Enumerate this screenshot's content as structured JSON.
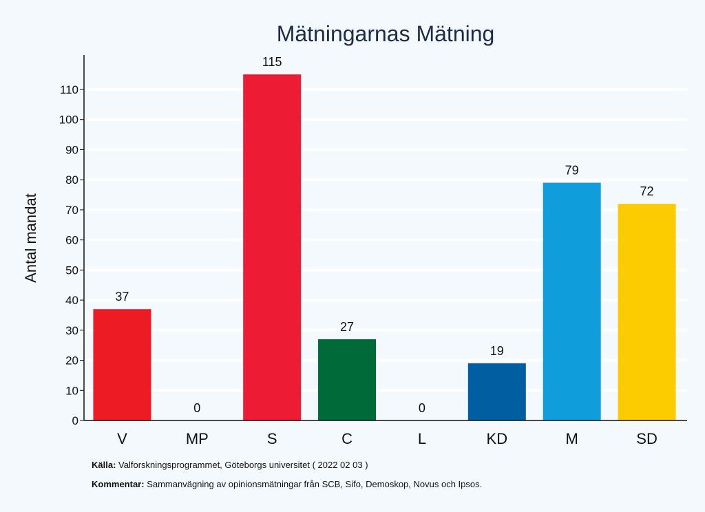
{
  "chart_data": {
    "type": "bar",
    "title": "Mätningarnas Mätning",
    "xlabel": "",
    "ylabel": "Antal mandat",
    "ylim": [
      0,
      120
    ],
    "yticks": [
      0,
      10,
      20,
      30,
      40,
      50,
      60,
      70,
      80,
      90,
      100,
      110
    ],
    "categories": [
      "V",
      "MP",
      "S",
      "C",
      "L",
      "KD",
      "M",
      "SD"
    ],
    "values": [
      37,
      0,
      115,
      27,
      0,
      19,
      79,
      72
    ],
    "colors": [
      "#ed1c24",
      "#83cf39",
      "#ed1b34",
      "#006b39",
      "#0095d6",
      "#005ea1",
      "#109ddb",
      "#fdcc00"
    ],
    "grid": true
  },
  "footer": {
    "source_label": "Källa:",
    "source_text": "Valforskningsprogrammet, Göteborgs universitet ( 2022 02 03 )",
    "comment_label": "Kommentar:",
    "comment_text": "Sammanvägning av opinionsmätningar från SCB, Sifo, Demoskop, Novus och Ipsos."
  }
}
